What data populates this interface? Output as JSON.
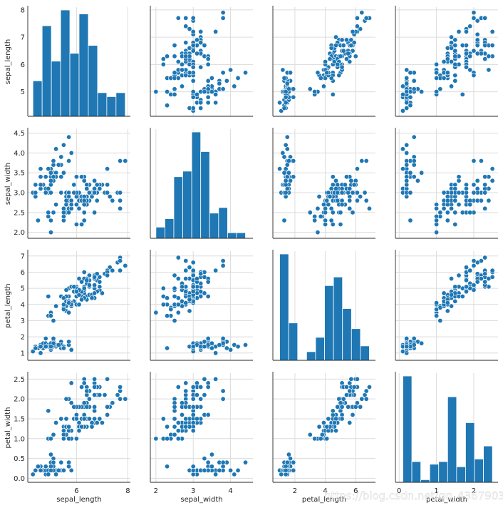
{
  "chart_data": {
    "type": "pairplot",
    "color": "#1f77b4",
    "grid_color": "#dcdcdc",
    "variables": [
      "sepal_length",
      "sepal_width",
      "petal_length",
      "petal_width"
    ],
    "ticks": {
      "sepal_length": [
        "5",
        "6",
        "7",
        "8"
      ],
      "sepal_width": [
        "2.0",
        "2.5",
        "3.0",
        "3.5",
        "4.0",
        "4.5"
      ],
      "petal_length": [
        "1",
        "2",
        "3",
        "4",
        "5",
        "6",
        "7"
      ],
      "petal_width": [
        "0.0",
        "0.5",
        "1.0",
        "1.5",
        "2.0",
        "2.5"
      ]
    },
    "x_ticks": {
      "sepal_length": [
        "6",
        "8"
      ],
      "sepal_width": [
        "2",
        "3",
        "4"
      ],
      "petal_length": [
        "2",
        "4",
        "6"
      ],
      "petal_width": [
        "0",
        "1",
        "2"
      ]
    },
    "ranges": {
      "sepal_length": [
        4.1,
        8.1
      ],
      "sepal_width": [
        1.85,
        4.6
      ],
      "petal_length": [
        0.55,
        7.3
      ],
      "petal_width": [
        -0.1,
        2.65
      ]
    },
    "histograms": {
      "sepal_length": {
        "edges": [
          4.3,
          4.66,
          5.02,
          5.38,
          5.74,
          6.1,
          6.46,
          6.82,
          7.18,
          7.54,
          7.9
        ],
        "counts": [
          9,
          23,
          14,
          27,
          16,
          26,
          18,
          6,
          5,
          6
        ]
      },
      "sepal_width": {
        "edges": [
          2.0,
          2.24,
          2.48,
          2.72,
          2.96,
          3.2,
          3.44,
          3.68,
          3.92,
          4.16,
          4.4
        ],
        "counts": [
          4,
          7,
          22,
          24,
          38,
          31,
          9,
          11,
          2,
          2
        ]
      },
      "petal_length": {
        "edges": [
          1.0,
          1.59,
          2.18,
          2.77,
          3.36,
          3.95,
          4.54,
          5.13,
          5.72,
          6.31,
          6.9
        ],
        "counts": [
          37,
          13,
          0,
          3,
          8,
          26,
          29,
          18,
          11,
          5
        ]
      },
      "petal_width": {
        "edges": [
          0.1,
          0.34,
          0.58,
          0.82,
          1.06,
          1.3,
          1.54,
          1.78,
          2.02,
          2.26,
          2.5
        ],
        "counts": [
          41,
          8,
          1,
          7,
          8,
          33,
          6,
          23,
          9,
          14
        ]
      }
    },
    "data": {
      "sepal_length": [
        5.1,
        4.9,
        4.7,
        4.6,
        5.0,
        5.4,
        4.6,
        5.0,
        4.4,
        4.9,
        5.4,
        4.8,
        4.8,
        4.3,
        5.8,
        5.7,
        5.4,
        5.1,
        5.7,
        5.1,
        5.4,
        5.1,
        4.6,
        5.1,
        4.8,
        5.0,
        5.0,
        5.2,
        5.2,
        4.7,
        4.8,
        5.4,
        5.2,
        5.5,
        4.9,
        5.0,
        5.5,
        4.9,
        4.4,
        5.1,
        5.0,
        4.5,
        4.4,
        5.0,
        5.1,
        4.8,
        5.1,
        4.6,
        5.3,
        5.0,
        7.0,
        6.4,
        6.9,
        5.5,
        6.5,
        5.7,
        6.3,
        4.9,
        6.6,
        5.2,
        5.0,
        5.9,
        6.0,
        6.1,
        5.6,
        6.7,
        5.6,
        5.8,
        6.2,
        5.6,
        5.9,
        6.1,
        6.3,
        6.1,
        6.4,
        6.6,
        6.8,
        6.7,
        6.0,
        5.7,
        5.5,
        5.5,
        5.8,
        6.0,
        5.4,
        6.0,
        6.7,
        6.3,
        5.6,
        5.5,
        5.5,
        6.1,
        5.8,
        5.0,
        5.6,
        5.7,
        5.7,
        6.2,
        5.1,
        5.7,
        6.3,
        5.8,
        7.1,
        6.3,
        6.5,
        7.6,
        4.9,
        7.3,
        6.7,
        7.2,
        6.5,
        6.4,
        6.8,
        5.7,
        5.8,
        6.4,
        6.5,
        7.7,
        7.7,
        6.0,
        6.9,
        5.6,
        7.7,
        6.3,
        6.7,
        7.2,
        6.2,
        6.1,
        6.4,
        7.2,
        7.4,
        7.9,
        6.4,
        6.3,
        6.1,
        7.7,
        6.3,
        6.4,
        6.0,
        6.9,
        6.7,
        6.9,
        5.8,
        6.8,
        6.7,
        6.7,
        6.3,
        6.5,
        6.2,
        5.9
      ],
      "sepal_width": [
        3.5,
        3.0,
        3.2,
        3.1,
        3.6,
        3.9,
        3.4,
        3.4,
        2.9,
        3.1,
        3.7,
        3.4,
        3.0,
        3.0,
        4.0,
        4.4,
        3.9,
        3.5,
        3.8,
        3.8,
        3.4,
        3.7,
        3.6,
        3.3,
        3.4,
        3.0,
        3.4,
        3.5,
        3.4,
        3.2,
        3.1,
        3.4,
        4.1,
        4.2,
        3.1,
        3.2,
        3.5,
        3.6,
        3.0,
        3.4,
        3.5,
        2.3,
        3.2,
        3.5,
        3.8,
        3.0,
        3.8,
        3.2,
        3.7,
        3.3,
        3.2,
        3.2,
        3.1,
        2.3,
        2.8,
        2.8,
        3.3,
        2.4,
        2.9,
        2.7,
        2.0,
        3.0,
        2.2,
        2.9,
        2.9,
        3.1,
        3.0,
        2.7,
        2.2,
        2.5,
        3.2,
        2.8,
        2.5,
        2.8,
        2.9,
        3.0,
        2.8,
        3.0,
        2.9,
        2.6,
        2.4,
        2.4,
        2.7,
        2.7,
        3.0,
        3.4,
        3.1,
        2.3,
        3.0,
        2.5,
        2.6,
        3.0,
        2.6,
        2.3,
        2.7,
        3.0,
        2.9,
        2.9,
        2.5,
        2.8,
        3.3,
        2.7,
        3.0,
        2.9,
        3.0,
        3.0,
        2.5,
        2.9,
        2.5,
        3.6,
        3.2,
        2.7,
        3.0,
        2.5,
        2.8,
        3.2,
        3.0,
        3.8,
        2.6,
        2.2,
        3.2,
        2.8,
        2.8,
        2.7,
        3.3,
        3.2,
        2.8,
        3.0,
        2.8,
        3.0,
        2.8,
        3.8,
        2.8,
        2.8,
        2.6,
        3.0,
        3.4,
        3.1,
        3.0,
        3.1,
        3.1,
        3.1,
        2.7,
        3.2,
        3.3,
        3.0,
        2.5,
        3.0,
        3.4,
        3.0
      ],
      "petal_length": [
        1.4,
        1.4,
        1.3,
        1.5,
        1.4,
        1.7,
        1.4,
        1.5,
        1.4,
        1.5,
        1.5,
        1.6,
        1.4,
        1.1,
        1.2,
        1.5,
        1.3,
        1.4,
        1.7,
        1.5,
        1.7,
        1.5,
        1.0,
        1.7,
        1.9,
        1.6,
        1.6,
        1.5,
        1.4,
        1.6,
        1.6,
        1.5,
        1.5,
        1.4,
        1.5,
        1.2,
        1.3,
        1.4,
        1.3,
        1.5,
        1.3,
        1.3,
        1.3,
        1.6,
        1.9,
        1.4,
        1.6,
        1.4,
        1.5,
        1.4,
        4.7,
        4.5,
        4.9,
        4.0,
        4.6,
        4.5,
        4.7,
        3.3,
        4.6,
        3.9,
        3.5,
        4.2,
        4.0,
        4.7,
        3.6,
        4.4,
        4.5,
        4.1,
        4.5,
        3.9,
        4.8,
        4.0,
        4.9,
        4.7,
        4.3,
        4.4,
        4.8,
        5.0,
        4.5,
        3.5,
        3.8,
        3.7,
        3.9,
        5.1,
        4.5,
        4.5,
        4.7,
        4.4,
        4.1,
        4.0,
        4.4,
        4.6,
        4.0,
        3.3,
        4.2,
        4.2,
        4.2,
        4.3,
        3.0,
        4.1,
        6.0,
        5.1,
        5.9,
        5.6,
        5.8,
        6.6,
        4.5,
        6.3,
        5.8,
        6.1,
        5.1,
        5.3,
        5.5,
        5.0,
        5.1,
        5.3,
        5.5,
        6.7,
        6.9,
        5.0,
        5.7,
        4.9,
        6.7,
        4.9,
        5.7,
        6.0,
        4.8,
        4.9,
        5.6,
        5.8,
        6.1,
        6.4,
        5.6,
        5.1,
        5.6,
        6.1,
        5.6,
        5.5,
        4.8,
        5.4,
        5.6,
        5.1,
        5.1,
        5.9,
        5.7,
        5.2,
        5.0,
        5.2,
        5.4,
        5.1
      ],
      "petal_width": [
        0.2,
        0.2,
        0.2,
        0.2,
        0.2,
        0.4,
        0.3,
        0.2,
        0.2,
        0.1,
        0.2,
        0.2,
        0.1,
        0.1,
        0.2,
        0.4,
        0.4,
        0.3,
        0.3,
        0.3,
        0.2,
        0.4,
        0.2,
        0.5,
        0.2,
        0.2,
        0.4,
        0.2,
        0.2,
        0.2,
        0.2,
        0.4,
        0.1,
        0.2,
        0.2,
        0.2,
        0.2,
        0.1,
        0.2,
        0.2,
        0.3,
        0.3,
        0.2,
        0.6,
        0.4,
        0.3,
        0.2,
        0.2,
        0.2,
        0.2,
        1.4,
        1.5,
        1.5,
        1.3,
        1.5,
        1.3,
        1.6,
        1.0,
        1.3,
        1.4,
        1.0,
        1.5,
        1.0,
        1.4,
        1.3,
        1.4,
        1.5,
        1.0,
        1.5,
        1.1,
        1.8,
        1.3,
        1.5,
        1.2,
        1.3,
        1.4,
        1.4,
        1.7,
        1.5,
        1.0,
        1.1,
        1.0,
        1.2,
        1.6,
        1.5,
        1.6,
        1.5,
        1.3,
        1.3,
        1.3,
        1.2,
        1.4,
        1.2,
        1.0,
        1.3,
        1.2,
        1.3,
        1.3,
        1.1,
        1.3,
        2.5,
        1.9,
        2.1,
        1.8,
        2.2,
        2.1,
        1.7,
        1.8,
        1.8,
        2.5,
        2.0,
        1.9,
        2.1,
        2.0,
        2.4,
        2.3,
        1.8,
        2.2,
        2.3,
        1.5,
        2.3,
        2.0,
        2.0,
        1.8,
        2.1,
        1.8,
        1.8,
        1.8,
        2.1,
        1.6,
        1.9,
        2.0,
        2.2,
        1.5,
        1.4,
        2.3,
        2.4,
        1.8,
        1.8,
        2.1,
        2.4,
        2.3,
        1.9,
        2.3,
        2.5,
        2.3,
        1.9,
        2.0,
        2.3,
        1.8
      ]
    },
    "watermark": "https://blog.csdn.net/qq_43679030"
  }
}
